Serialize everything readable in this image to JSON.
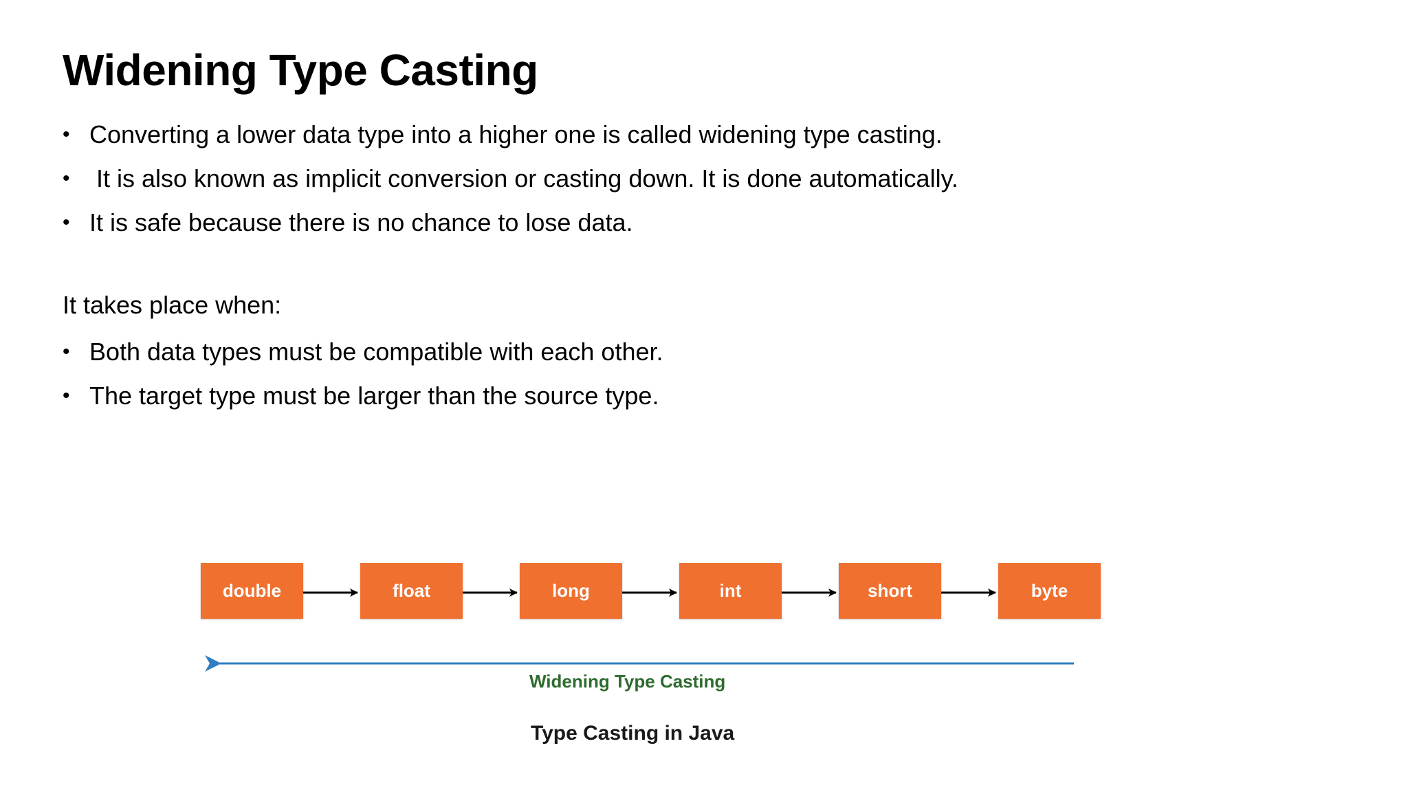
{
  "slide": {
    "title": "Widening Type Casting",
    "bullets_top": [
      "Converting a lower data type into a higher one is called widening type casting.",
      " It is also known as implicit conversion or casting down. It is done automatically.",
      "It is safe because there is no chance to lose data."
    ],
    "intro": "It takes place when:",
    "bullets_bottom": [
      "Both data types must be compatible with each other.",
      "The target type must be larger than the source type."
    ],
    "bullet_symbol": "•"
  },
  "diagram": {
    "types": [
      "double",
      "float",
      "long",
      "int",
      "short",
      "byte"
    ],
    "direction_label": "Widening Type Casting",
    "caption": "Type Casting in Java",
    "colors": {
      "box": "#f07030",
      "box_text": "#ffffff",
      "chain_arrow": "#000000",
      "direction_arrow": "#2f7ec1",
      "direction_label": "#2e6b2e"
    }
  }
}
